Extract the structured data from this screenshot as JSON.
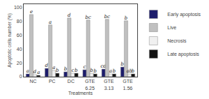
{
  "chart_data": {
    "type": "bar",
    "xlabel": "Treatments",
    "ylabel": "Apoptotic cells number (%)",
    "categories": [
      "NC",
      "PC",
      "DC",
      "GTE\n6.25",
      "GTE\n3.13",
      "GTE\n1.56"
    ],
    "series": [
      {
        "name": "Early apoptosis",
        "color": "#1c1c6b",
        "values": [
          4,
          12,
          7,
          10,
          11,
          14
        ],
        "annotations": [
          "a",
          "d",
          "b",
          "c",
          "cd",
          "b"
        ]
      },
      {
        "name": "Live",
        "color": "#c0c0c0",
        "values": [
          90,
          75,
          85,
          82,
          83,
          81
        ],
        "annotations": [
          "e",
          "a",
          "d",
          "bc",
          "bc",
          "b"
        ]
      },
      {
        "name": "Necrosis",
        "color": "#f0f0f0",
        "values": [
          3,
          9,
          5,
          5,
          4,
          4
        ],
        "annotations": [
          "d",
          "a",
          "c",
          "b",
          "a",
          "ab"
        ]
      },
      {
        "name": "Late apoptosis",
        "color": "#111111",
        "values": [
          2,
          5,
          5,
          4,
          4,
          4
        ],
        "annotations": [
          "a",
          "b",
          "b",
          "b",
          "b",
          "b"
        ]
      }
    ],
    "ylim": [
      0,
      105
    ],
    "yticks": [
      0,
      20,
      40,
      60,
      80,
      100
    ],
    "grid": false,
    "legend": "right"
  }
}
